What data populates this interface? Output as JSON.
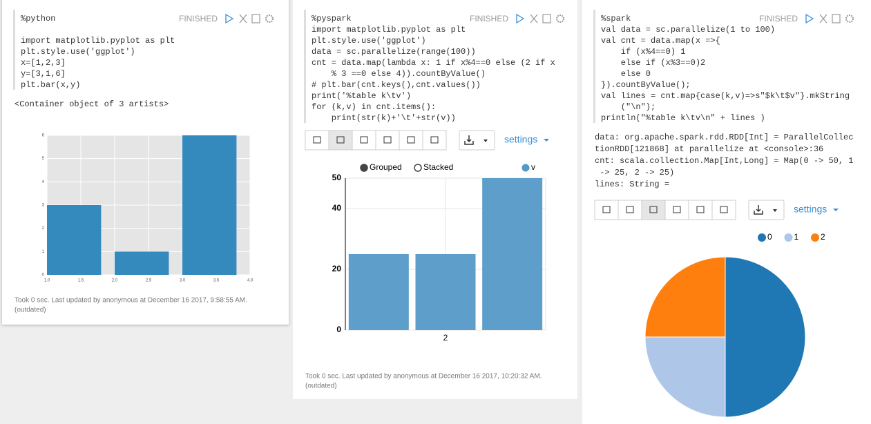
{
  "paragraphs": [
    {
      "status": "FINISHED",
      "code": [
        "%python",
        "",
        "import matplotlib.pyplot as plt",
        "plt.style.use('ggplot')",
        "x=[1,2,3]",
        "y=[3,1,6]",
        "plt.bar(x,y)"
      ],
      "output": [
        "<Container object of 3 artists>"
      ],
      "chart_data": {
        "type": "bar",
        "x": [
          1,
          2,
          3
        ],
        "values": [
          3,
          1,
          6
        ],
        "color": "#348abd",
        "xlim": [
          1,
          4
        ],
        "ylim": [
          0,
          6
        ],
        "xticks": [
          {
            "value": 1,
            "label": "1.0"
          },
          {
            "value": 1.5,
            "label": "1.5"
          },
          {
            "value": 2,
            "label": "2.0"
          },
          {
            "value": 2.5,
            "label": "2.5"
          },
          {
            "value": 3,
            "label": "3.0"
          },
          {
            "value": 3.5,
            "label": "3.5"
          },
          {
            "value": 4,
            "label": "4.0"
          }
        ],
        "yticks": [
          0,
          1,
          2,
          3,
          4,
          5,
          6
        ],
        "grid": true
      },
      "footer": [
        "Took 0 sec. Last updated by anonymous at December 16 2017, 9:58:55 AM.",
        "(outdated)"
      ]
    },
    {
      "status": "FINISHED",
      "code": [
        "%pyspark",
        "import matplotlib.pyplot as plt",
        "plt.style.use('ggplot')",
        "data = sc.parallelize(range(100))",
        "cnt = data.map(lambda x: 1 if x%4==0 else (2 if x",
        "    % 3 ==0 else 4)).countByValue()",
        "# plt.bar(cnt.keys(),cnt.values())",
        "print('%table k\\tv')",
        "for (k,v) in cnt.items():",
        "    print(str(k)+'\\t'+str(v))"
      ],
      "settings": "settings",
      "controls": [
        "Grouped",
        "Stacked"
      ],
      "chart_data": {
        "type": "bar",
        "categories": [
          null,
          "2",
          null
        ],
        "series": [
          {
            "name": "v",
            "color": "#5599c7",
            "values": [
              25,
              25,
              50
            ]
          }
        ],
        "ylim": [
          0,
          50
        ],
        "yticks": [
          0,
          20,
          40,
          50
        ],
        "grid": true
      },
      "footer": [
        "Took 0 sec. Last updated by anonymous at December 16 2017, 10:20:32 AM.",
        "(outdated)"
      ]
    },
    {
      "status": "FINISHED",
      "code": [
        "%spark",
        "val data = sc.parallelize(1 to 100)",
        "val cnt = data.map(x =>{",
        "    if (x%4==0) 1",
        "    else if (x%3==0)2",
        "    else 0",
        "}).countByValue();",
        "val lines = cnt.map{case(k,v)=>s\"$k\\t$v\"}.mkString",
        "    (\"\\n\");",
        "println(\"%table k\\tv\\n\" + lines )"
      ],
      "output": [
        "data: org.apache.spark.rdd.RDD[Int] = ParallelCollec",
        "tionRDD[121868] at parallelize at <console>:36",
        "cnt: scala.collection.Map[Int,Long] = Map(0 -> 50, 1",
        " -> 25, 2 -> 25)",
        "lines: String ="
      ],
      "settings": "settings",
      "chart_data": {
        "type": "pie",
        "categories": [
          "0",
          "1",
          "2"
        ],
        "values": [
          50,
          25,
          25
        ],
        "colors": [
          "#1f77b4",
          "#aec7e8",
          "#ff7f0e"
        ]
      }
    }
  ]
}
